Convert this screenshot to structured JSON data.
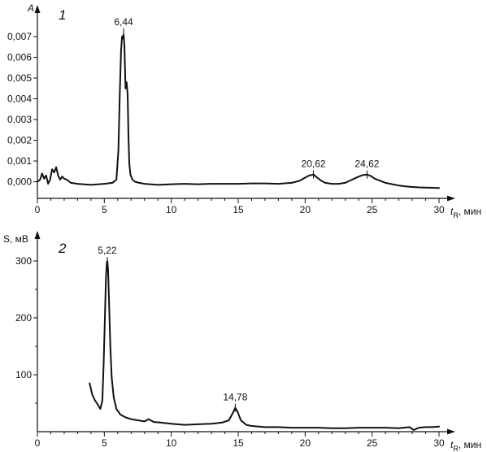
{
  "chart_data": [
    {
      "type": "line",
      "panel_number": "1",
      "ylabel": "A",
      "xlabel_main": "t",
      "xlabel_sub": "R",
      "xlabel_unit": ", мин",
      "xlim": [
        0,
        30
      ],
      "ylim": [
        -0.0008,
        0.0079
      ],
      "x_ticks": [
        0,
        5,
        10,
        15,
        20,
        25,
        30
      ],
      "x_tick_labels": [
        "0",
        "5",
        "10",
        "15",
        "20",
        "25",
        "30"
      ],
      "y_ticks": [
        0,
        0.001,
        0.002,
        0.003,
        0.004,
        0.005,
        0.006,
        0.007
      ],
      "y_tick_labels": [
        "0,000",
        "0,001",
        "0,002",
        "0,003",
        "0,004",
        "0,005",
        "0,006",
        "0,007"
      ],
      "peak_labels": [
        {
          "x": 6.44,
          "y": 0.0072,
          "text": "6,44"
        },
        {
          "x": 20.62,
          "y": 0.00035,
          "text": "20,62"
        },
        {
          "x": 24.62,
          "y": 0.00035,
          "text": "24,62"
        }
      ],
      "series": [
        {
          "x": [
            0,
            0.2,
            0.35,
            0.5,
            0.65,
            0.8,
            0.95,
            1.1,
            1.25,
            1.4,
            1.55,
            1.7,
            1.85,
            2.0,
            2.2,
            2.5,
            3.0,
            4.0,
            5.0,
            5.6,
            5.9,
            6.05,
            6.15,
            6.25,
            6.32,
            6.38,
            6.44,
            6.5,
            6.58,
            6.66,
            6.74,
            6.8,
            6.86,
            6.95,
            7.1,
            7.3,
            7.6,
            8.0,
            9.0,
            10.0,
            11.0,
            12.0,
            13.0,
            14.0,
            15.0,
            16.0,
            17.0,
            18.0,
            19.0,
            19.6,
            20.0,
            20.3,
            20.62,
            20.9,
            21.2,
            21.5,
            22.0,
            22.5,
            23.0,
            23.5,
            24.0,
            24.3,
            24.62,
            24.9,
            25.2,
            25.6,
            26.0,
            26.5,
            27.0,
            27.5,
            28.0,
            28.5,
            29.0,
            29.5,
            30.0
          ],
          "y": [
            0.0,
            0.0001,
            0.0004,
            0.00015,
            0.0003,
            -0.0001,
            0.0001,
            0.0006,
            0.00045,
            0.0007,
            0.0003,
            0.0001,
            0.00025,
            0.00015,
            0.0001,
            -5e-05,
            -0.0001,
            -0.00015,
            -0.0001,
            -5e-05,
            0.0001,
            0.0015,
            0.0042,
            0.0063,
            0.007,
            0.0069,
            0.0071,
            0.0066,
            0.0045,
            0.0048,
            0.0042,
            0.0022,
            0.0009,
            0.00035,
            0.0001,
            0.0,
            -5e-05,
            -0.0001,
            -0.00015,
            -0.00012,
            -0.0001,
            -0.00012,
            -0.0001,
            -0.0001,
            -0.0001,
            -8e-05,
            -8e-05,
            -0.0001,
            -5e-05,
            5e-05,
            0.0002,
            0.0003,
            0.00035,
            0.0002,
            5e-05,
            -5e-05,
            -0.0001,
            -0.0001,
            -5e-05,
            0.0001,
            0.00025,
            0.00032,
            0.00035,
            0.00028,
            0.00015,
            5e-05,
            -5e-05,
            -0.00012,
            -0.00018,
            -0.00022,
            -0.00025,
            -0.00027,
            -0.00028,
            -0.00029,
            -0.0003
          ]
        }
      ]
    },
    {
      "type": "line",
      "panel_number": "2",
      "ylabel": "S, мВ",
      "xlabel_main": "t",
      "xlabel_sub": "R",
      "xlabel_unit": ", мин",
      "xlim": [
        0,
        30
      ],
      "ylim": [
        0,
        330
      ],
      "x_ticks": [
        0,
        5,
        10,
        15,
        20,
        25,
        30
      ],
      "x_tick_labels": [
        "0",
        "5",
        "10",
        "15",
        "20",
        "25",
        "30"
      ],
      "y_ticks": [
        100,
        200,
        300
      ],
      "y_tick_labels": [
        "100",
        "200",
        "300"
      ],
      "peak_labels": [
        {
          "x": 5.22,
          "y": 300,
          "text": "5,22"
        },
        {
          "x": 14.78,
          "y": 42,
          "text": "14,78"
        }
      ],
      "series": [
        {
          "x": [
            3.9,
            4.1,
            4.3,
            4.5,
            4.7,
            4.85,
            4.95,
            5.05,
            5.12,
            5.18,
            5.22,
            5.28,
            5.36,
            5.45,
            5.55,
            5.7,
            5.9,
            6.2,
            6.6,
            7.0,
            7.5,
            8.0,
            8.3,
            8.7,
            9.2,
            10.0,
            11.0,
            12.0,
            13.0,
            13.8,
            14.3,
            14.6,
            14.78,
            14.95,
            15.2,
            15.6,
            16.0,
            17.0,
            18.0,
            19.0,
            20.0,
            21.0,
            22.0,
            23.0,
            24.0,
            25.0,
            26.0,
            27.0,
            27.8,
            28.1,
            28.5,
            29.0,
            29.5,
            30.0
          ],
          "y": [
            85,
            65,
            55,
            48,
            40,
            55,
            120,
            210,
            270,
            295,
            300,
            285,
            220,
            150,
            95,
            60,
            40,
            30,
            25,
            22,
            20,
            18,
            22,
            17,
            16,
            14,
            12,
            13,
            14,
            16,
            20,
            33,
            42,
            35,
            20,
            12,
            10,
            8,
            8,
            7,
            7,
            7,
            6,
            6,
            7,
            7,
            7,
            6,
            8,
            3,
            7,
            8,
            8,
            9
          ]
        }
      ]
    }
  ]
}
